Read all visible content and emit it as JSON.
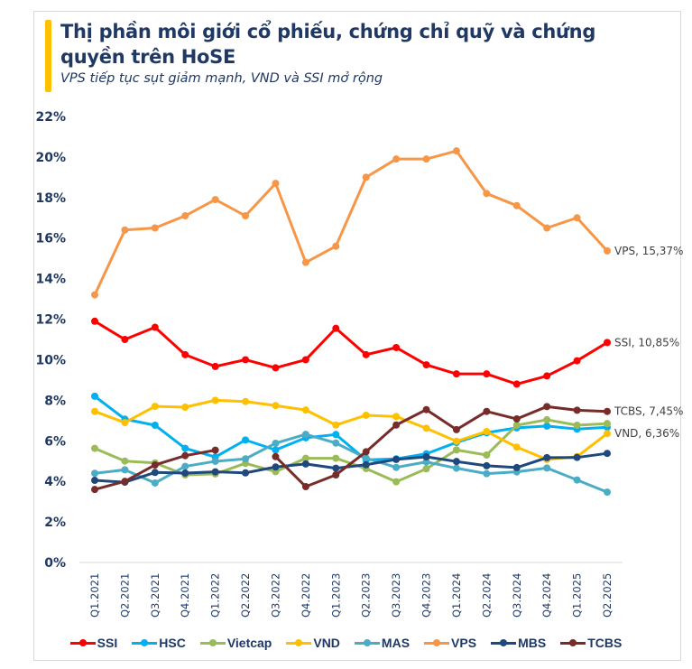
{
  "header": {
    "title": "Thị phần môi giới cổ phiếu, chứng chỉ quỹ và chứng quyền trên HoSE",
    "subtitle": "VPS tiếp tục sụt giảm mạnh, VND và SSI mở rộng",
    "accent_color": "#FFC000",
    "text_color": "#1F3864"
  },
  "chart_data": {
    "type": "line",
    "title": "Thị phần môi giới cổ phiếu, chứng chỉ quỹ và chứng quyền trên HoSE",
    "subtitle": "VPS tiếp tục sụt giảm mạnh, VND và SSI mở rộng",
    "xlabel": "",
    "ylabel": "",
    "ylim": [
      0,
      22
    ],
    "y_ticks": [
      0,
      2,
      4,
      6,
      8,
      10,
      12,
      14,
      16,
      18,
      20,
      22
    ],
    "y_tick_format": "percent",
    "grid": false,
    "legend_position": "bottom",
    "categories": [
      "Q1.2021",
      "Q2.2021",
      "Q3.2021",
      "Q4.2021",
      "Q1.2022",
      "Q2.2022",
      "Q3.2022",
      "Q4.2022",
      "Q1.2023",
      "Q2.2023",
      "Q3.2023",
      "Q4.2023",
      "Q1.2024",
      "Q2.2024",
      "Q3.2024",
      "Q4.2024",
      "Q1.2025",
      "Q2.2025"
    ],
    "series": [
      {
        "name": "SSI",
        "color": "#FF0000",
        "end_label": "SSI, 10,85%",
        "values": [
          11.9,
          11.0,
          11.6,
          10.25,
          9.67,
          10.0,
          9.6,
          10.0,
          11.55,
          10.25,
          10.6,
          9.75,
          9.3,
          9.3,
          8.8,
          9.2,
          9.95,
          10.85
        ]
      },
      {
        "name": "HSC",
        "color": "#00B0F0",
        "end_label": "",
        "values": [
          8.2,
          7.07,
          6.77,
          5.63,
          5.2,
          6.04,
          5.55,
          6.15,
          6.31,
          5.06,
          5.11,
          5.36,
          5.92,
          6.4,
          6.64,
          6.73,
          6.58,
          6.67
        ]
      },
      {
        "name": "Vietcap",
        "color": "#9BBB59",
        "end_label": "",
        "values": [
          5.63,
          5.0,
          4.91,
          4.32,
          4.37,
          4.89,
          4.48,
          5.14,
          5.14,
          4.63,
          3.98,
          4.62,
          5.55,
          5.3,
          6.77,
          7.04,
          6.77,
          6.85
        ]
      },
      {
        "name": "VND",
        "color": "#FFC000",
        "end_label": "VND, 6,36%",
        "values": [
          7.45,
          6.9,
          7.7,
          7.66,
          8.0,
          7.94,
          7.74,
          7.52,
          6.78,
          7.26,
          7.2,
          6.62,
          5.98,
          6.46,
          5.69,
          5.08,
          5.22,
          6.36
        ]
      },
      {
        "name": "MAS",
        "color": "#4BACC6",
        "end_label": "",
        "values": [
          4.4,
          4.57,
          3.92,
          4.74,
          4.99,
          5.11,
          5.88,
          6.32,
          5.89,
          5.15,
          4.69,
          4.96,
          4.65,
          4.38,
          4.47,
          4.66,
          4.07,
          3.47
        ]
      },
      {
        "name": "VPS",
        "color": "#F79646",
        "end_label": "VPS, 15,37%",
        "values": [
          13.2,
          16.4,
          16.5,
          17.1,
          17.9,
          17.1,
          18.7,
          14.8,
          15.6,
          19.0,
          19.9,
          19.9,
          20.3,
          18.2,
          17.6,
          16.5,
          17.0,
          15.37
        ]
      },
      {
        "name": "MBS",
        "color": "#1F497D",
        "end_label": "",
        "values": [
          4.05,
          3.96,
          4.44,
          4.41,
          4.47,
          4.42,
          4.71,
          4.86,
          4.65,
          4.82,
          5.08,
          5.21,
          4.98,
          4.77,
          4.68,
          5.17,
          5.18,
          5.38
        ]
      },
      {
        "name": "TCBS",
        "color": "#772C2A",
        "end_label": "TCBS, 7,45%",
        "values": [
          3.6,
          4.0,
          4.81,
          5.27,
          5.54,
          null,
          5.22,
          3.74,
          4.32,
          5.46,
          6.78,
          7.54,
          6.55,
          7.45,
          7.08,
          7.69,
          7.51,
          7.45
        ]
      }
    ]
  }
}
